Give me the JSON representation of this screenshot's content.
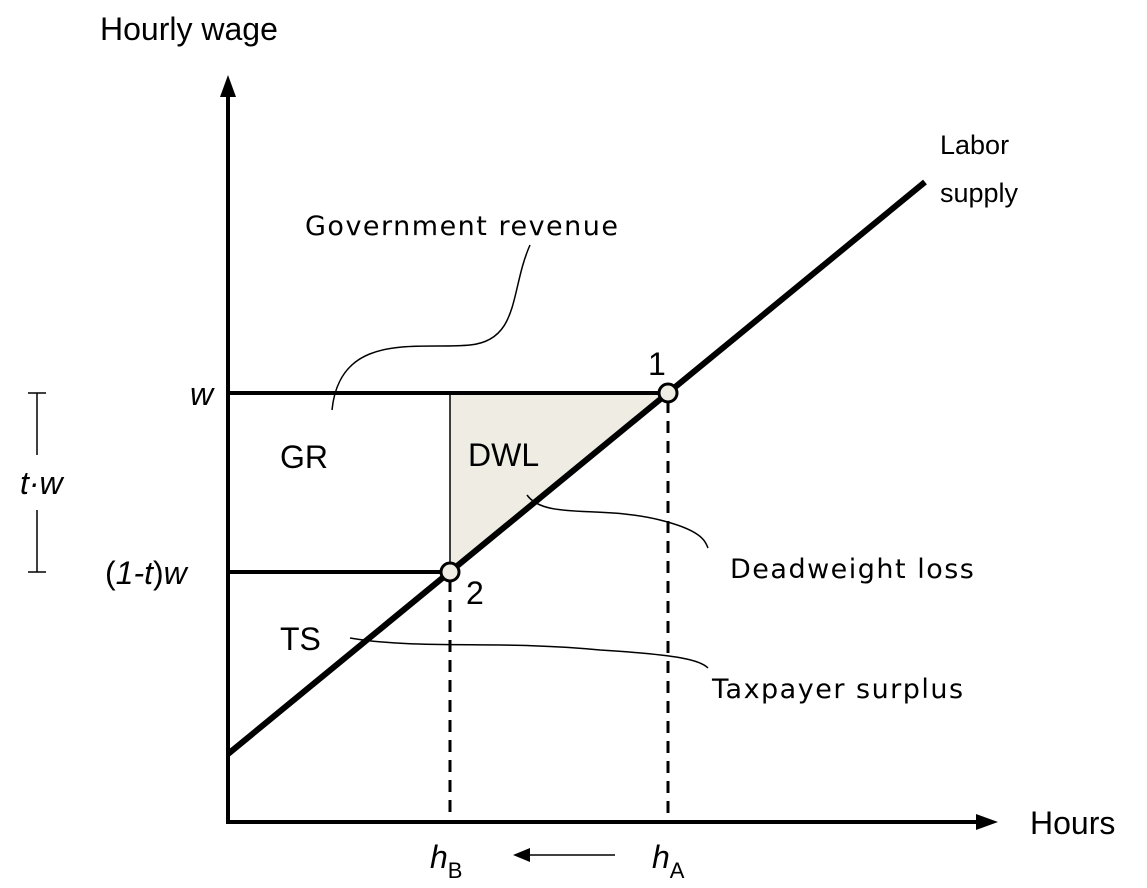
{
  "diagram": {
    "y_axis_label": "Hourly wage",
    "x_axis_label": "Hours",
    "curve_label": [
      "Labor",
      "supply"
    ],
    "wage_label": "w",
    "net_wage_label": [
      "(",
      "1-t",
      ")",
      "w"
    ],
    "tax_label": "t·w",
    "points": [
      "1",
      "2"
    ],
    "areas": [
      "GR",
      "DWL",
      "TS"
    ],
    "annotations": [
      "Government revenue",
      "Deadweight loss",
      "Taxpayer surplus"
    ],
    "hours_b": {
      "main": "h",
      "sub": "B"
    },
    "hours_a": {
      "main": "h",
      "sub": "A"
    }
  }
}
